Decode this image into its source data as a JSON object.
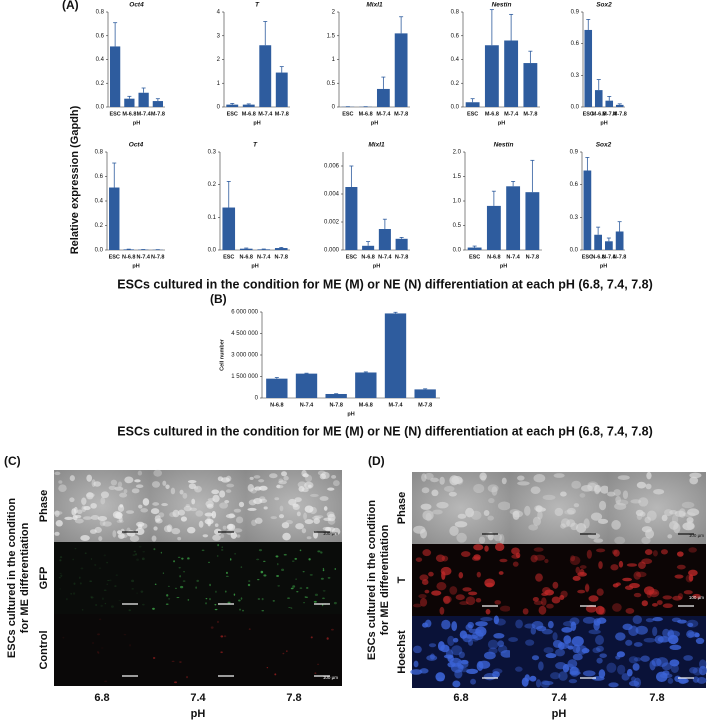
{
  "panel_a": {
    "label": "(A)",
    "ylabel": "Relative expression (Gapdh)",
    "caption": "ESCs cultured in the condition for ME (M) or NE (N) differentiation at each pH (6.8, 7.4, 7.8)"
  },
  "panel_b": {
    "label": "(B)",
    "caption": "ESCs cultured in the condition for ME (M) or NE (N) differentiation at each pH (6.8, 7.4, 7.8)"
  },
  "panel_c": {
    "label": "(C)",
    "side_label": [
      "ESCs cultured in the condition",
      "for ME differentiation"
    ],
    "rows": [
      "Phase",
      "GFP",
      "Control"
    ],
    "columns": [
      "6.8",
      "7.4",
      "7.8"
    ],
    "xlabel": "pH",
    "scale_labels": [
      "100 µm",
      "100 µm"
    ]
  },
  "panel_d": {
    "label": "(D)",
    "side_label": [
      "ESCs cultured in the condition",
      "for ME differentiation"
    ],
    "rows": [
      "Phase",
      "T",
      "Hoechst"
    ],
    "columns": [
      "6.8",
      "7.4",
      "7.8"
    ],
    "xlabel": "pH",
    "scale_labels": [
      "100 µm",
      "100 µm"
    ]
  },
  "chart_data": [
    {
      "type": "bar",
      "title": "Oct4",
      "categories": [
        "ESC",
        "M-6.8",
        "M-7.4",
        "M-7.8"
      ],
      "xlabel": "pH",
      "values": [
        0.51,
        0.07,
        0.12,
        0.05
      ],
      "errors": [
        0.2,
        0.02,
        0.04,
        0.02
      ],
      "color": "#2e5c9e",
      "ylim": [
        0,
        0.8
      ],
      "yticks": [
        {
          "value": 0,
          "label": "0.0"
        },
        {
          "value": 0.2,
          "label": "0.2"
        },
        {
          "value": 0.4,
          "label": "0.4"
        },
        {
          "value": 0.6,
          "label": "0.6"
        },
        {
          "value": 0.8,
          "label": "0.8"
        }
      ]
    },
    {
      "type": "bar",
      "title": "T",
      "categories": [
        "ESC",
        "M-6.8",
        "M-7.4",
        "M-7.8"
      ],
      "xlabel": "pH",
      "values": [
        0.1,
        0.1,
        2.6,
        1.45
      ],
      "errors": [
        0.05,
        0.03,
        1.0,
        0.25
      ],
      "color": "#2e5c9e",
      "ylim": [
        0,
        4
      ],
      "yticks": [
        0,
        1,
        2,
        3,
        4
      ]
    },
    {
      "type": "bar",
      "title": "Mixl1",
      "categories": [
        "ESC",
        "M-6.8",
        "M-7.4",
        "M-7.8"
      ],
      "xlabel": "pH",
      "values": [
        0.005,
        0.005,
        0.38,
        1.55
      ],
      "errors": [
        0.002,
        0.002,
        0.25,
        0.35
      ],
      "color": "#2e5c9e",
      "ylim": [
        0,
        2
      ],
      "yticks": [
        0,
        0.5,
        1,
        1.5,
        2
      ]
    },
    {
      "type": "bar",
      "title": "Nestin",
      "categories": [
        "ESC",
        "M-6.8",
        "M-7.4",
        "M-7.8"
      ],
      "xlabel": "pH",
      "values": [
        0.04,
        0.52,
        0.56,
        0.37
      ],
      "errors": [
        0.03,
        0.3,
        0.22,
        0.1
      ],
      "color": "#2e5c9e",
      "ylim": [
        0,
        0.8
      ],
      "yticks": [
        {
          "value": 0,
          "label": "0.0"
        },
        {
          "value": 0.2,
          "label": "0.2"
        },
        {
          "value": 0.4,
          "label": "0.4"
        },
        {
          "value": 0.6,
          "label": "0.6"
        },
        {
          "value": 0.8,
          "label": "0.8"
        }
      ]
    },
    {
      "type": "bar",
      "title": "Sox2",
      "categories": [
        "ESC",
        "M-6.8",
        "M-7.4",
        "M-7.8"
      ],
      "xlabel": "pH",
      "values": [
        0.73,
        0.16,
        0.06,
        0.02
      ],
      "errors": [
        0.1,
        0.1,
        0.04,
        0.01
      ],
      "color": "#2e5c9e",
      "ylim": [
        0,
        0.9
      ],
      "yticks": [
        {
          "value": 0,
          "label": "0.0"
        },
        0.3,
        0.6,
        0.9
      ]
    },
    {
      "type": "bar",
      "title": "Oct4",
      "categories": [
        "ESC",
        "N-6.8",
        "N-7.4",
        "N-7.8"
      ],
      "xlabel": "pH",
      "values": [
        0.51,
        0.005,
        0.003,
        0.002
      ],
      "errors": [
        0.2,
        0.002,
        0.001,
        0.001
      ],
      "color": "#2e5c9e",
      "ylim": [
        0,
        0.8
      ],
      "yticks": [
        {
          "value": 0,
          "label": "0.0"
        },
        {
          "value": 0.2,
          "label": "0.2"
        },
        {
          "value": 0.4,
          "label": "0.4"
        },
        {
          "value": 0.6,
          "label": "0.6"
        },
        {
          "value": 0.8,
          "label": "0.8"
        }
      ]
    },
    {
      "type": "bar",
      "title": "T",
      "categories": [
        "ESC",
        "N-6.8",
        "N-7.4",
        "N-7.8"
      ],
      "xlabel": "pH",
      "values": [
        0.13,
        0.004,
        0.002,
        0.006
      ],
      "errors": [
        0.08,
        0.002,
        0.001,
        0.002
      ],
      "color": "#2e5c9e",
      "ylim": [
        0,
        0.3
      ],
      "yticks": [
        {
          "value": 0,
          "label": "0.0"
        },
        0.1,
        0.2,
        0.3
      ]
    },
    {
      "type": "bar",
      "title": "Mixl1",
      "categories": [
        "ESC",
        "N-6.8",
        "N-7.4",
        "N-7.8"
      ],
      "xlabel": "pH",
      "values": [
        0.0045,
        0.0003,
        0.0015,
        0.0008
      ],
      "errors": [
        0.0015,
        0.0003,
        0.0007,
        0.0001
      ],
      "color": "#2e5c9e",
      "ylim": [
        0,
        0.007
      ],
      "yticks": [
        {
          "value": 0,
          "label": "0.000"
        },
        0.002,
        0.004,
        0.006
      ]
    },
    {
      "type": "bar",
      "title": "Nestin",
      "categories": [
        "ESC",
        "N-6.8",
        "N-7.4",
        "N-7.8"
      ],
      "xlabel": "pH",
      "values": [
        0.05,
        0.9,
        1.3,
        1.18
      ],
      "errors": [
        0.03,
        0.3,
        0.1,
        0.65
      ],
      "color": "#2e5c9e",
      "ylim": [
        0,
        2
      ],
      "yticks": [
        {
          "value": 0,
          "label": "0.0"
        },
        0.5,
        {
          "value": 1,
          "label": "1.0"
        },
        1.5,
        {
          "value": 2,
          "label": "2.0"
        }
      ]
    },
    {
      "type": "bar",
      "title": "Sox2",
      "categories": [
        "ESC",
        "N-6.8",
        "N-7.4",
        "N-7.8"
      ],
      "xlabel": "pH",
      "values": [
        0.73,
        0.14,
        0.08,
        0.17
      ],
      "errors": [
        0.12,
        0.07,
        0.03,
        0.09
      ],
      "color": "#2e5c9e",
      "ylim": [
        0,
        0.9
      ],
      "yticks": [
        {
          "value": 0,
          "label": "0.0"
        },
        0.3,
        0.6,
        0.9
      ]
    },
    {
      "type": "bar",
      "ylabel": "Cell number",
      "categories": [
        "N-6.8",
        "N-7.4",
        "N-7.8",
        "M-6.8",
        "M-7.4",
        "M-7.8"
      ],
      "xlabel": "pH",
      "values": [
        1350000,
        1700000,
        280000,
        1780000,
        5900000,
        600000
      ],
      "errors": [
        80000,
        30000,
        20000,
        40000,
        80000,
        40000
      ],
      "color": "#2e5c9e",
      "ylim": [
        0,
        6000000
      ],
      "yticks": [
        0,
        {
          "value": 1500000,
          "label": "1 500 000"
        },
        {
          "value": 3000000,
          "label": "3 000 000"
        },
        {
          "value": 4500000,
          "label": "4 500 000"
        },
        {
          "value": 6000000,
          "label": "6 000 000"
        }
      ]
    }
  ]
}
